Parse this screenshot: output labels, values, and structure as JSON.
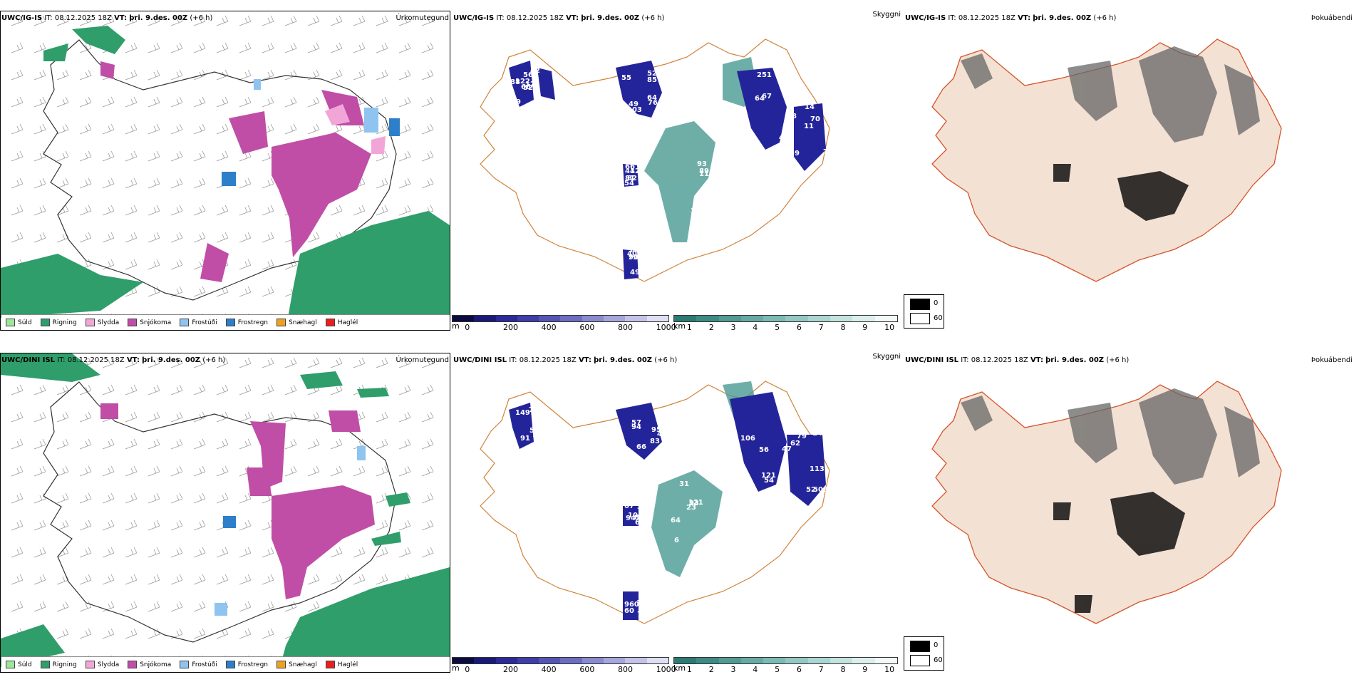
{
  "rows": [
    {
      "model": "UWC/IG-IS",
      "precip_title": "Úrkomutegund",
      "cloud_title": "Skyggni",
      "fog_title": "Þokuábendi",
      "it_label": "IT:",
      "it_value": "08.12.2025 18Z",
      "vt_label": "VT:",
      "vt_value": "þri. 9.des. 00Z",
      "lead": "(+6 h)",
      "cloud_labels": [
        "52",
        "55",
        "64",
        "59",
        "89",
        "82",
        "38",
        "56",
        "52",
        "67",
        "71",
        "63",
        "41",
        "54",
        "66",
        "85",
        "64",
        "14",
        "93",
        "81",
        "90",
        "79",
        "103",
        "251",
        "70",
        "83",
        "66",
        "65",
        "88",
        "64",
        "87",
        "11",
        "35",
        "42",
        "40",
        "42",
        "49",
        "46",
        "75",
        "38",
        "27",
        "79",
        "122",
        "76",
        "88",
        "78",
        "110",
        "54",
        "49",
        "12",
        "2"
      ]
    },
    {
      "model": "UWC/DINI ISL",
      "precip_title": "Úrkomutegund",
      "cloud_title": "Skyggni",
      "fog_title": "Þokuábendi",
      "it_label": "IT:",
      "it_value": "08.12.2025 18Z",
      "vt_label": "VT:",
      "vt_value": "þri. 9.des. 00Z",
      "lead": "(+6 h)",
      "cloud_labels": [
        "57",
        "49",
        "51",
        "79",
        "93",
        "67",
        "60",
        "73",
        "57",
        "54",
        "62",
        "64",
        "67",
        "71",
        "91",
        "47",
        "56",
        "113",
        "121",
        "94",
        "92",
        "81",
        "94",
        "47",
        "140",
        "31",
        "87",
        "960",
        "149",
        "95",
        "121",
        "508",
        "23",
        "104",
        "146",
        "11",
        "83",
        "106",
        "52",
        "6",
        "38",
        "64",
        "53",
        "66"
      ]
    }
  ],
  "precip_legend": [
    {
      "label": "Súld",
      "color": "#9be89b"
    },
    {
      "label": "Rigning",
      "color": "#2f9e6a"
    },
    {
      "label": "Slydda",
      "color": "#f2a6d8"
    },
    {
      "label": "Snjókoma",
      "color": "#c04ea6"
    },
    {
      "label": "Frostúði",
      "color": "#8fc3f0"
    },
    {
      "label": "Frostregn",
      "color": "#2d7fc9"
    },
    {
      "label": "Snæhagl",
      "color": "#f0a021"
    },
    {
      "label": "Haglél",
      "color": "#e81f1f"
    }
  ],
  "cloud_bar_m": {
    "unit": "m",
    "ticks": [
      "0",
      "200",
      "400",
      "600",
      "800",
      "1000"
    ],
    "colors": [
      "#0b0b40",
      "#19197a",
      "#2a2a9a",
      "#3e3ea8",
      "#5555b6",
      "#6d6dc2",
      "#8a8acf",
      "#a6a6dc",
      "#c3c3e9",
      "#e0e0f4"
    ]
  },
  "cloud_bar_km": {
    "unit": "km",
    "ticks": [
      "1",
      "2",
      "3",
      "4",
      "5",
      "6",
      "7",
      "8",
      "9",
      "10"
    ],
    "colors": [
      "#2b7a73",
      "#3e8a84",
      "#529a94",
      "#67aaa4",
      "#7cbab4",
      "#93c8c3",
      "#abd6d1",
      "#c4e3df",
      "#dcefec",
      "#f2f9f8"
    ]
  },
  "fog_legend": {
    "high": "0",
    "low": "60",
    "high_color": "#000000",
    "low_color": "#ffffff"
  }
}
